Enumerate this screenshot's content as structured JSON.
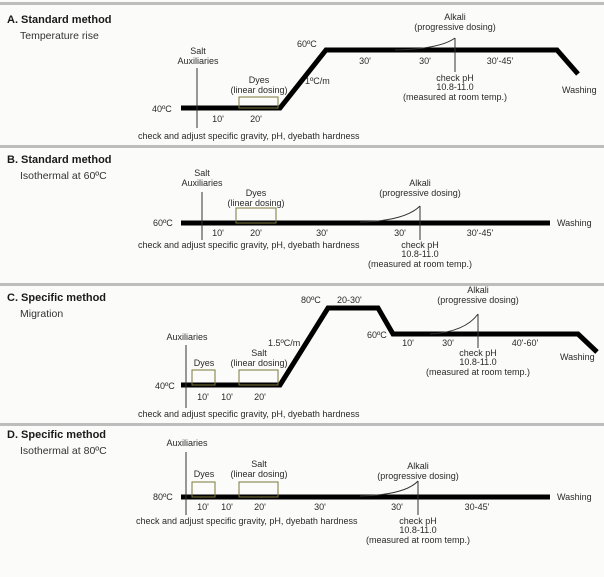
{
  "panels": [
    {
      "title": "A. Standard method",
      "subtitle": "Temperature rise",
      "start_temp": "40ºC",
      "top_temp": "60ºC",
      "rate": "1ºC/m",
      "salt": "Salt",
      "auxiliaries": "Auxiliaries",
      "dyes": "Dyes",
      "dyes_dosing": "(linear dosing)",
      "alkali": "Alkali",
      "alkali_dosing": "(progressive dosing)",
      "times": [
        "10'",
        "20'",
        "30'",
        "30'",
        "30'-45'"
      ],
      "check_ph": "check pH",
      "ph_range": "10.8-11.0",
      "ph_note": "(measured at room temp.)",
      "washing": "Washing",
      "check_adjust": "check and adjust specific gravity, pH, dyebath hardness"
    },
    {
      "title": "B. Standard method",
      "subtitle": "Isothermal at 60ºC",
      "temp": "60ºC",
      "salt": "Salt",
      "auxiliaries": "Auxiliaries",
      "dyes": "Dyes",
      "dyes_dosing": "(linear dosing)",
      "alkali": "Alkali",
      "alkali_dosing": "(progressive dosing)",
      "times": [
        "10'",
        "20'",
        "30'",
        "30'",
        "30'-45'"
      ],
      "check_ph": "check pH",
      "ph_range": "10.8-11.0",
      "ph_note": "(measured at room temp.)",
      "washing": "Washing",
      "check_adjust": "check and adjust specific gravity, pH, dyebath hardness"
    },
    {
      "title": "C. Specific method",
      "subtitle": "Migration",
      "start_temp": "40ºC",
      "peak_temp": "80ºC",
      "peak_time": "20-30'",
      "hold_temp": "60ºC",
      "rate": "1.5ºC/m",
      "auxiliaries": "Auxiliaries",
      "dyes": "Dyes",
      "salt": "Salt",
      "salt_dosing": "(linear dosing)",
      "alkali": "Alkali",
      "alkali_dosing": "(progressive dosing)",
      "times_low": [
        "10'",
        "10'",
        "20'"
      ],
      "times_high": [
        "10'",
        "30'",
        "40'-60'"
      ],
      "check_ph": "check pH",
      "ph_range": "10.8-11.0",
      "ph_note": "(measured at room temp.)",
      "washing": "Washing",
      "check_adjust": "check and adjust specific gravity, pH, dyebath hardness"
    },
    {
      "title": "D. Specific method",
      "subtitle": "Isothermal at 80ºC",
      "temp": "80ºC",
      "auxiliaries": "Auxiliaries",
      "dyes": "Dyes",
      "salt": "Salt",
      "salt_dosing": "(linear dosing)",
      "alkali": "Alkali",
      "alkali_dosing": "(progressive dosing)",
      "times": [
        "10'",
        "10'",
        "20'",
        "30'",
        "30'",
        "30-45'"
      ],
      "check_ph": "check pH",
      "ph_range": "10.8-11.0",
      "ph_note": "(measured at room temp.)",
      "washing": "Washing",
      "check_adjust": "check and adjust specific gravity, pH, dyebath hardness"
    }
  ]
}
